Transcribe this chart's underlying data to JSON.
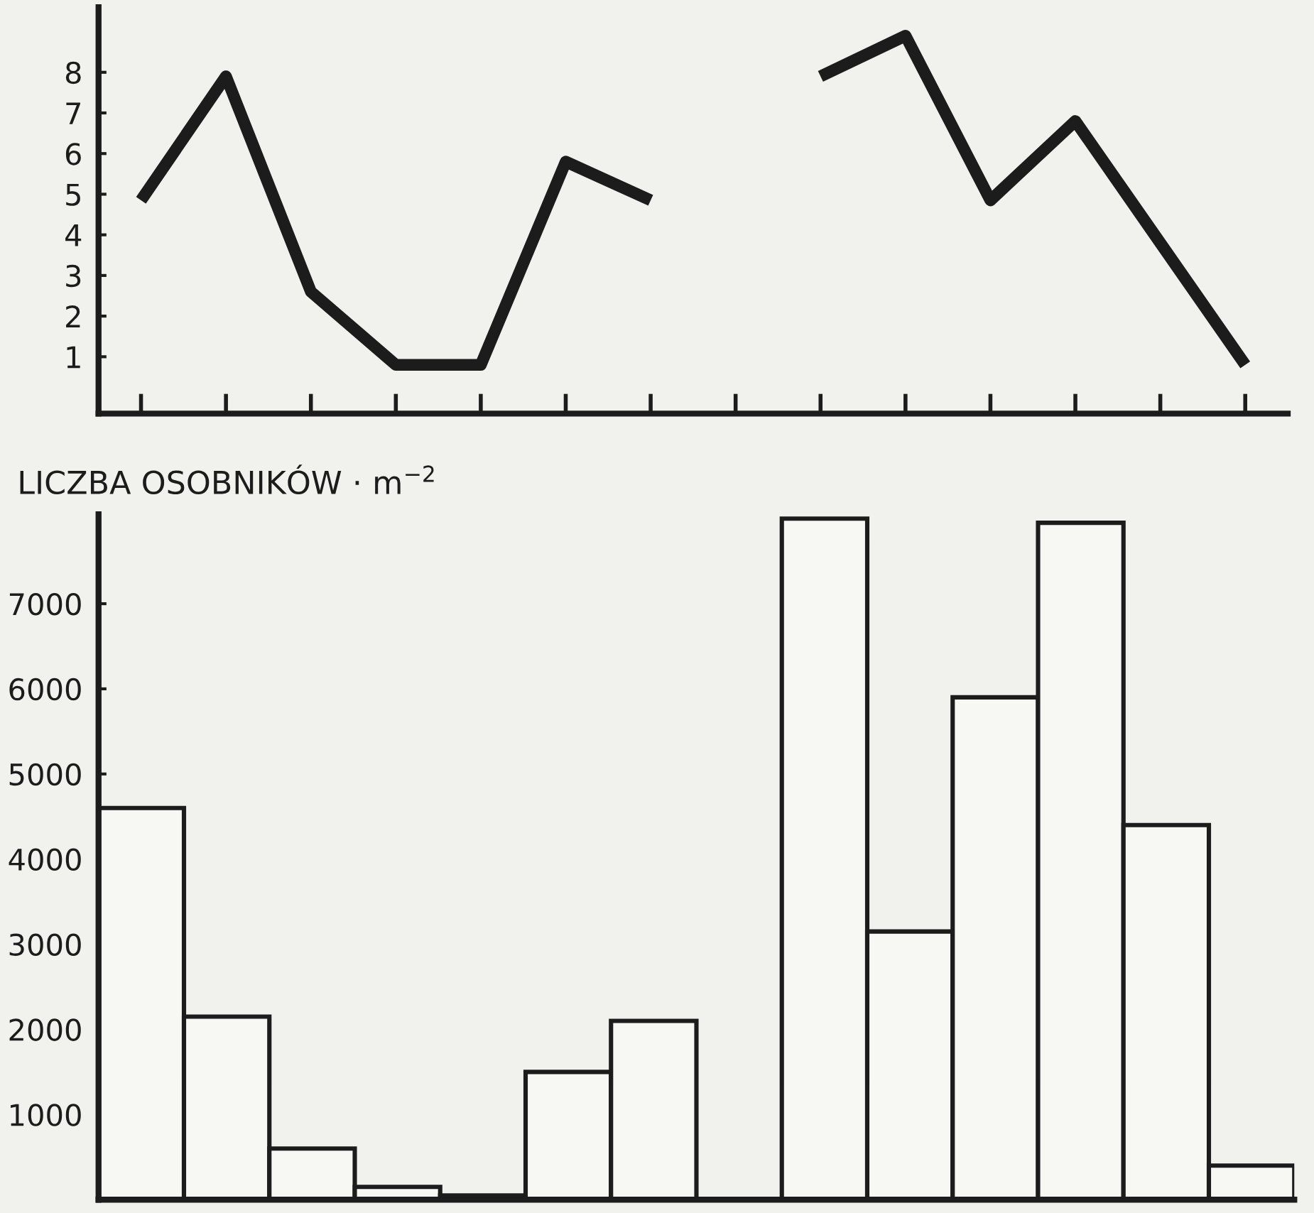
{
  "chart_data": [
    {
      "type": "line",
      "tick_labels": "y",
      "grid": false,
      "marker": "none",
      "line_style": "solid",
      "categories": [
        null,
        null,
        null,
        null,
        null,
        null,
        null,
        null,
        null,
        null,
        null,
        null,
        null,
        null
      ],
      "ylim": [
        -0.4,
        9.6
      ],
      "yticks": [
        1,
        2,
        3,
        4,
        5,
        6,
        7,
        8
      ],
      "series": [
        {
          "color": "#1c1c1c",
          "values": [
            4.85,
            7.9,
            2.6,
            0.8,
            0.8,
            5.8,
            4.85,
            null,
            7.9,
            8.9,
            4.85,
            6.8,
            3.8,
            0.8
          ]
        }
      ]
    },
    {
      "type": "bar",
      "tick_labels": "y",
      "grid": false,
      "ylabel": "LICZBA OSOBNIKÓW · m$^{−2}$",
      "categories": [
        null,
        null,
        null,
        null,
        null,
        null,
        null,
        null,
        null,
        null,
        null,
        null,
        null,
        null
      ],
      "ylim": [
        0,
        8050
      ],
      "yticks": [
        1000,
        2000,
        3000,
        4000,
        5000,
        6000,
        7000
      ],
      "values": [
        4600,
        2150,
        600,
        150,
        50,
        1500,
        2100,
        null,
        8000,
        3150,
        5900,
        7950,
        4400,
        400
      ],
      "color": "#f7f7f4"
    }
  ]
}
